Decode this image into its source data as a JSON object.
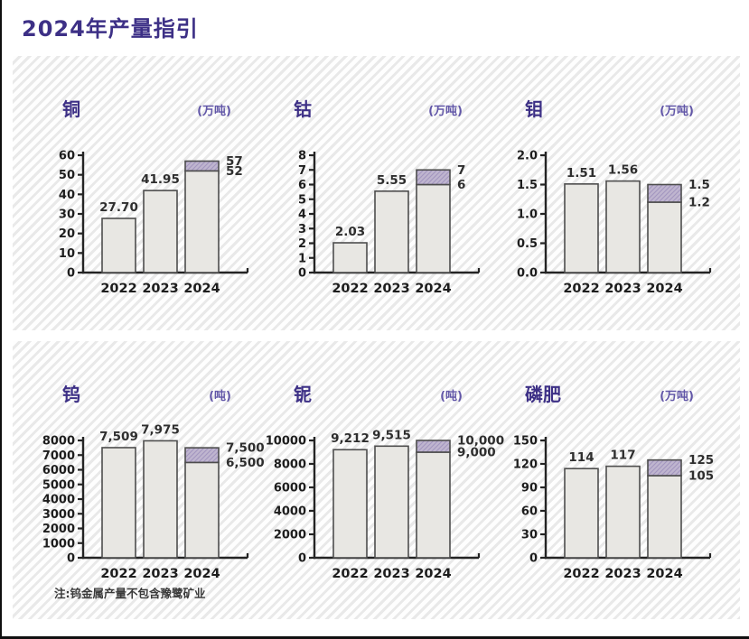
{
  "page": {
    "title": "2024年产量指引",
    "note": "注:钨金属产量不包含豫鹭矿业"
  },
  "colors": {
    "title": "#3d3086",
    "unit": "#6257a8",
    "bar_fill": "#e8e7e3",
    "bar_stroke": "#4d4d4d",
    "band_fill": "#bfb5cf",
    "band_hatch": "#a295bf",
    "axis": "#242424",
    "tick": "#1d1d1d",
    "value": "#2e2e2e"
  },
  "chart_data": [
    {
      "type": "bar",
      "title": "铜",
      "unit": "(万吨)",
      "ylim": [
        0,
        60
      ],
      "yticks": [
        "0",
        "10",
        "20",
        "30",
        "40",
        "50",
        "60"
      ],
      "categories": [
        "2022",
        "2023",
        "2024"
      ],
      "bars": [
        {
          "category": "2022",
          "value": 27.7,
          "label": "27.70"
        },
        {
          "category": "2023",
          "value": 41.95,
          "label": "41.95"
        },
        {
          "category": "2024",
          "low": 52,
          "high": 57,
          "low_label": "52",
          "high_label": "57"
        }
      ]
    },
    {
      "type": "bar",
      "title": "钴",
      "unit": "(万吨)",
      "ylim": [
        0,
        8
      ],
      "yticks": [
        "0",
        "1",
        "2",
        "3",
        "4",
        "5",
        "6",
        "7",
        "8"
      ],
      "categories": [
        "2022",
        "2023",
        "2024"
      ],
      "bars": [
        {
          "category": "2022",
          "value": 2.03,
          "label": "2.03"
        },
        {
          "category": "2023",
          "value": 5.55,
          "label": "5.55"
        },
        {
          "category": "2024",
          "low": 6,
          "high": 7,
          "low_label": "6",
          "high_label": "7"
        }
      ]
    },
    {
      "type": "bar",
      "title": "钼",
      "unit": "(万吨)",
      "ylim": [
        0,
        2.0
      ],
      "yticks": [
        "0.0",
        "0.5",
        "1.0",
        "1.5",
        "2.0"
      ],
      "categories": [
        "2022",
        "2023",
        "2024"
      ],
      "bars": [
        {
          "category": "2022",
          "value": 1.51,
          "label": "1.51"
        },
        {
          "category": "2023",
          "value": 1.56,
          "label": "1.56"
        },
        {
          "category": "2024",
          "low": 1.2,
          "high": 1.5,
          "low_label": "1.2",
          "high_label": "1.5"
        }
      ]
    },
    {
      "type": "bar",
      "title": "钨",
      "unit": "(吨)",
      "ylim": [
        0,
        8000
      ],
      "yticks": [
        "0",
        "1000",
        "2000",
        "3000",
        "4000",
        "5000",
        "6000",
        "7000",
        "8000"
      ],
      "categories": [
        "2022",
        "2023",
        "2024"
      ],
      "bars": [
        {
          "category": "2022",
          "value": 7509,
          "label": "7,509"
        },
        {
          "category": "2023",
          "value": 7975,
          "label": "7,975"
        },
        {
          "category": "2024",
          "low": 6500,
          "high": 7500,
          "low_label": "6,500",
          "high_label": "7,500"
        }
      ]
    },
    {
      "type": "bar",
      "title": "铌",
      "unit": "(吨)",
      "ylim": [
        0,
        10000
      ],
      "yticks": [
        "0",
        "2000",
        "4000",
        "6000",
        "8000",
        "10000"
      ],
      "categories": [
        "2022",
        "2023",
        "2024"
      ],
      "bars": [
        {
          "category": "2022",
          "value": 9212,
          "label": "9,212"
        },
        {
          "category": "2023",
          "value": 9515,
          "label": "9,515"
        },
        {
          "category": "2024",
          "low": 9000,
          "high": 10000,
          "low_label": "9,000",
          "high_label": "10,000"
        }
      ]
    },
    {
      "type": "bar",
      "title": "磷肥",
      "unit": "(万吨)",
      "ylim": [
        0,
        150
      ],
      "yticks": [
        "0",
        "30",
        "60",
        "90",
        "120",
        "150"
      ],
      "categories": [
        "2022",
        "2023",
        "2024"
      ],
      "bars": [
        {
          "category": "2022",
          "value": 114,
          "label": "114"
        },
        {
          "category": "2023",
          "value": 117,
          "label": "117"
        },
        {
          "category": "2024",
          "low": 105,
          "high": 125,
          "low_label": "105",
          "high_label": "125"
        }
      ]
    }
  ]
}
